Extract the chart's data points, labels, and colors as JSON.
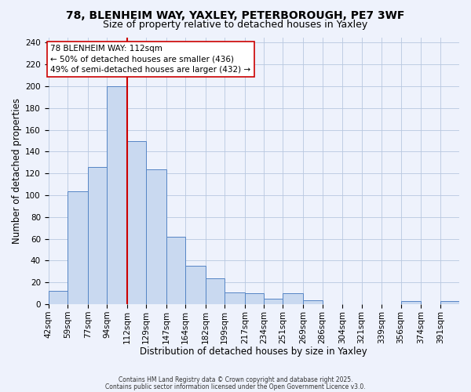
{
  "title1": "78, BLENHEIM WAY, YAXLEY, PETERBOROUGH, PE7 3WF",
  "title2": "Size of property relative to detached houses in Yaxley",
  "xlabel": "Distribution of detached houses by size in Yaxley",
  "ylabel": "Number of detached properties",
  "bar_labels": [
    "42sqm",
    "59sqm",
    "77sqm",
    "94sqm",
    "112sqm",
    "129sqm",
    "147sqm",
    "164sqm",
    "182sqm",
    "199sqm",
    "217sqm",
    "234sqm",
    "251sqm",
    "269sqm",
    "286sqm",
    "304sqm",
    "321sqm",
    "339sqm",
    "356sqm",
    "374sqm",
    "391sqm"
  ],
  "bar_values": [
    12,
    104,
    126,
    200,
    150,
    124,
    62,
    35,
    24,
    11,
    10,
    5,
    10,
    4,
    0,
    0,
    0,
    0,
    3,
    0,
    3
  ],
  "bar_edges": [
    42,
    59,
    77,
    94,
    112,
    129,
    147,
    164,
    182,
    199,
    217,
    234,
    251,
    269,
    286,
    304,
    321,
    339,
    356,
    374,
    391,
    408
  ],
  "bar_color": "#c9d9f0",
  "bar_edge_color": "#5585c5",
  "vline_x": 112,
  "vline_color": "#cc0000",
  "annotation_title": "78 BLENHEIM WAY: 112sqm",
  "annotation_line1": "← 50% of detached houses are smaller (436)",
  "annotation_line2": "49% of semi-detached houses are larger (432) →",
  "annotation_box_facecolor": "#ffffff",
  "annotation_box_edgecolor": "#cc0000",
  "ylim": [
    0,
    245
  ],
  "yticks": [
    0,
    20,
    40,
    60,
    80,
    100,
    120,
    140,
    160,
    180,
    200,
    220,
    240
  ],
  "background_color": "#eef2fc",
  "grid_color": "#b8c8e0",
  "footer1": "Contains HM Land Registry data © Crown copyright and database right 2025.",
  "footer2": "Contains public sector information licensed under the Open Government Licence v3.0.",
  "title1_fontsize": 10,
  "title2_fontsize": 9,
  "xlabel_fontsize": 8.5,
  "ylabel_fontsize": 8.5,
  "tick_fontsize": 7.5,
  "annot_fontsize": 7.5,
  "footer_fontsize": 5.5
}
